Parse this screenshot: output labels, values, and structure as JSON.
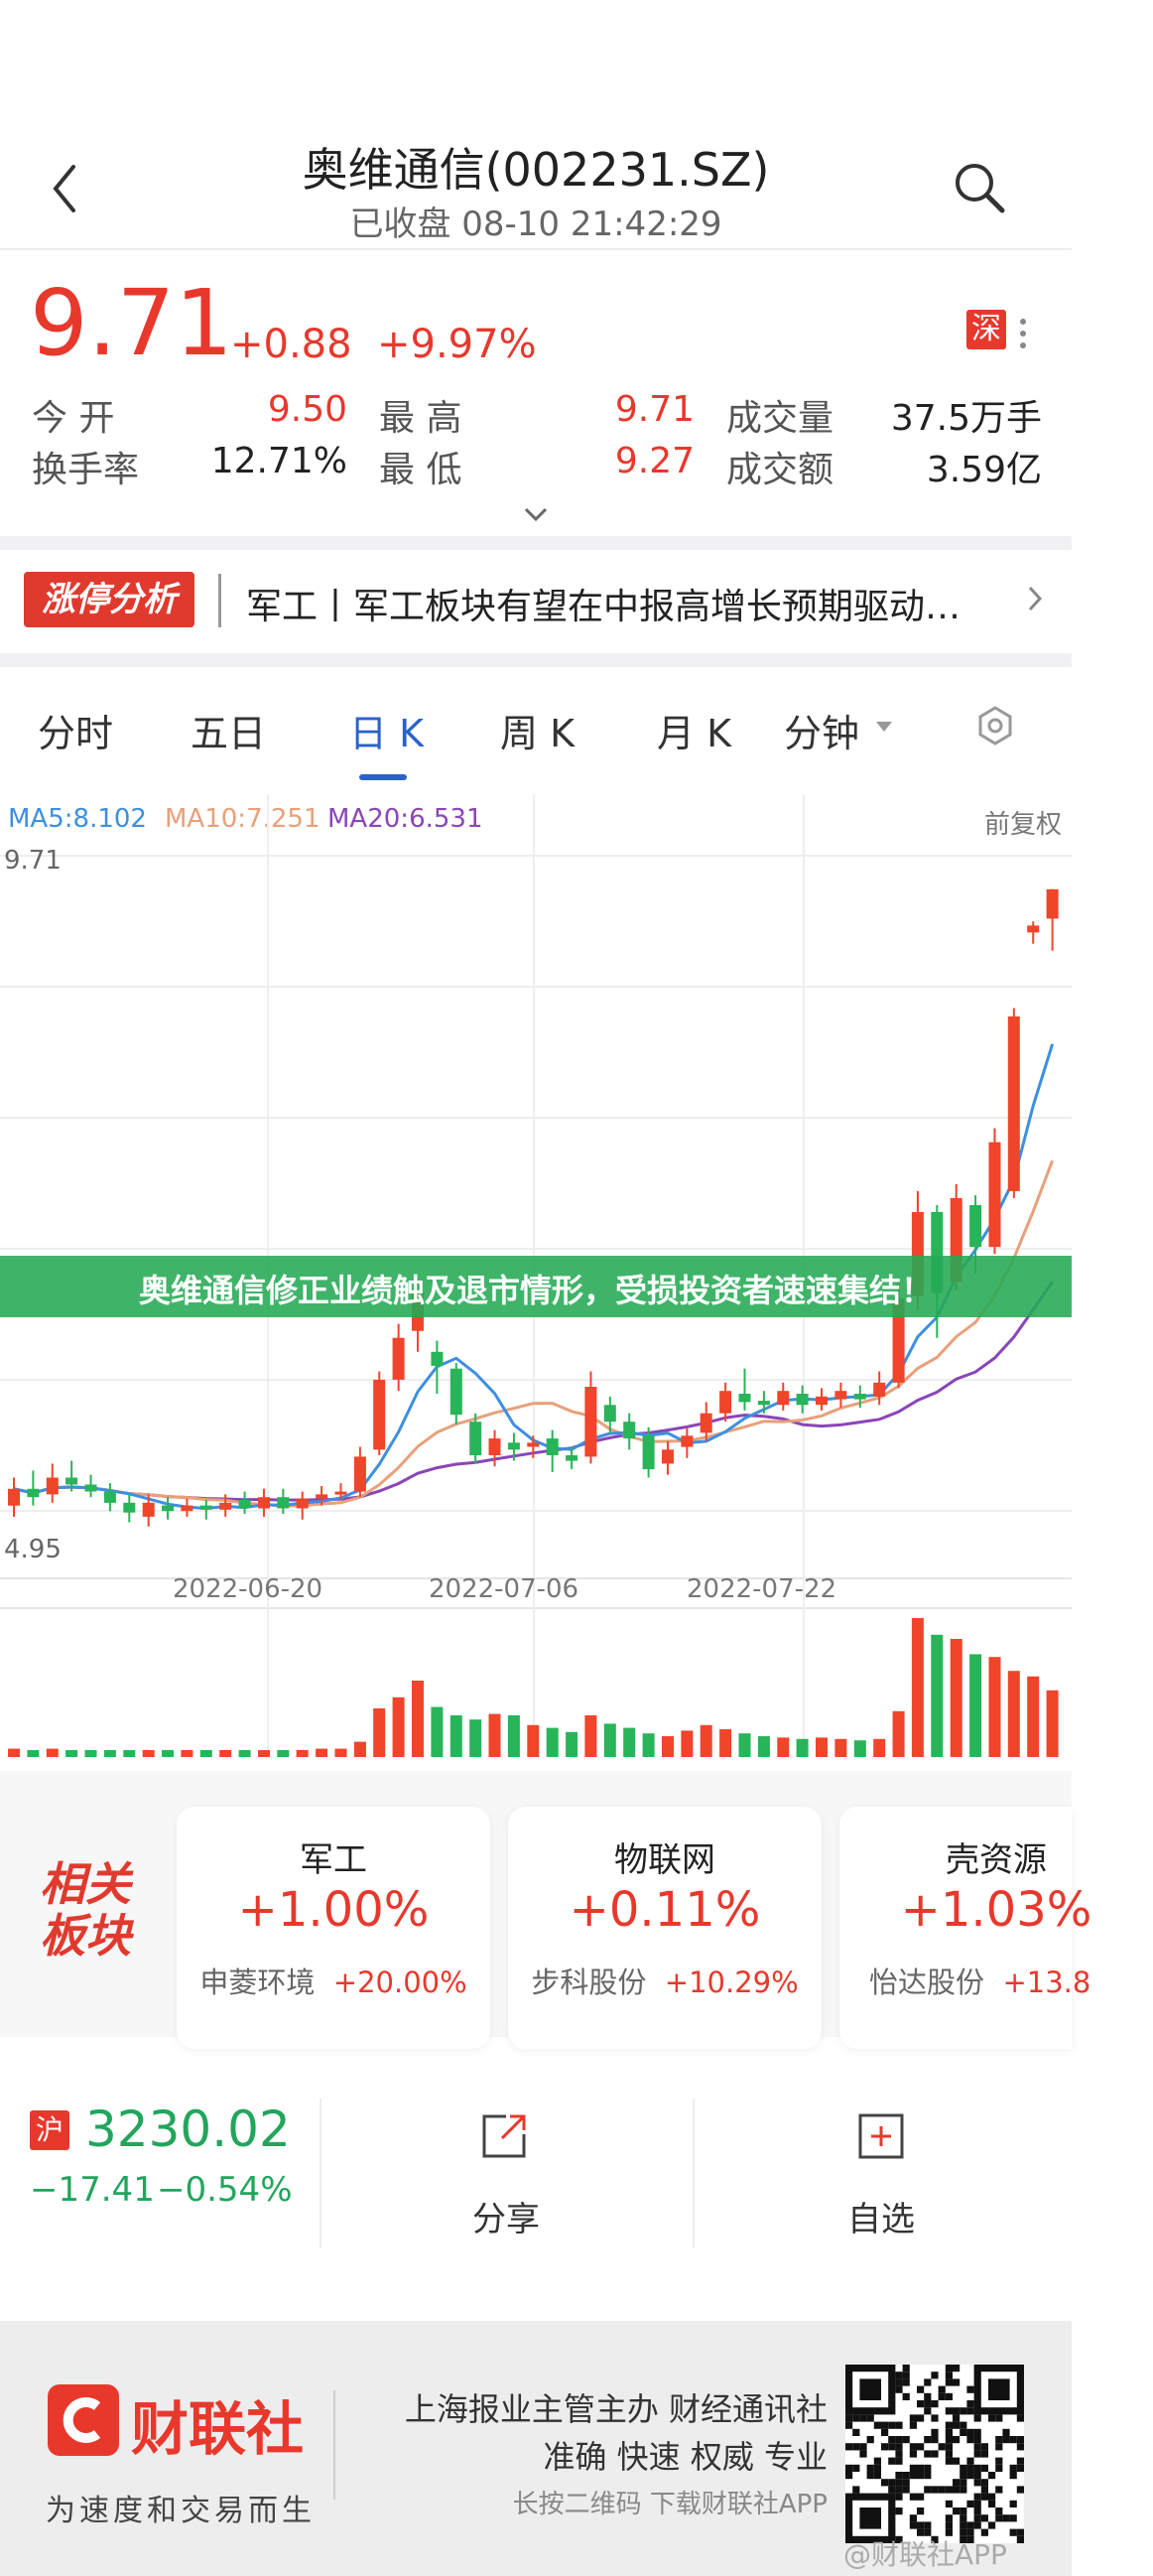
{
  "header": {
    "title": "奥维通信(002231.SZ)",
    "subtitle": "已收盘 08-10 21:42:29"
  },
  "quote": {
    "price": "9.71",
    "change": "+0.88",
    "change_pct": "+9.97%",
    "exchange_badge": "深",
    "open_label": "今 开",
    "open": "9.50",
    "high_label": "最 高",
    "high": "9.71",
    "volume_label": "成交量",
    "volume": "37.5万手",
    "turnover_label": "换手率",
    "turnover": "12.71%",
    "low_label": "最 低",
    "low": "9.27",
    "amount_label": "成交额",
    "amount": "3.59亿"
  },
  "news": {
    "badge": "涨停分析",
    "text": "军工丨军工板块有望在中报高增长预期驱动…"
  },
  "tabs": [
    "分时",
    "五日",
    "日 K",
    "周 K",
    "月 K",
    "分钟"
  ],
  "active_tab": "日 K",
  "ma_legend": {
    "ma5": "MA5:8.102",
    "ma10": "MA10:7.251",
    "ma20": "MA20:6.531",
    "adjust": "前复权"
  },
  "chart_data": {
    "type": "candlestick",
    "ymax_label": "9.71",
    "ymin_label": "4.95",
    "x_ticks": [
      "2022-06-20",
      "2022-07-06",
      "2022-07-22"
    ],
    "series_colors": {
      "up": "#f0442b",
      "down": "#28b459",
      "ma5": "#3d8fe0",
      "ma10": "#e8a07a",
      "ma20": "#8a45b8"
    },
    "candles": [
      {
        "o": 5.3,
        "c": 5.42,
        "h": 5.5,
        "l": 5.22
      },
      {
        "o": 5.42,
        "c": 5.36,
        "h": 5.55,
        "l": 5.3
      },
      {
        "o": 5.38,
        "c": 5.5,
        "h": 5.6,
        "l": 5.32
      },
      {
        "o": 5.5,
        "c": 5.45,
        "h": 5.62,
        "l": 5.4
      },
      {
        "o": 5.45,
        "c": 5.4,
        "h": 5.52,
        "l": 5.36
      },
      {
        "o": 5.4,
        "c": 5.32,
        "h": 5.46,
        "l": 5.26
      },
      {
        "o": 5.32,
        "c": 5.25,
        "h": 5.38,
        "l": 5.18
      },
      {
        "o": 5.22,
        "c": 5.32,
        "h": 5.38,
        "l": 5.15
      },
      {
        "o": 5.3,
        "c": 5.26,
        "h": 5.36,
        "l": 5.2
      },
      {
        "o": 5.26,
        "c": 5.3,
        "h": 5.35,
        "l": 5.22
      },
      {
        "o": 5.3,
        "c": 5.27,
        "h": 5.34,
        "l": 5.2
      },
      {
        "o": 5.27,
        "c": 5.32,
        "h": 5.38,
        "l": 5.22
      },
      {
        "o": 5.34,
        "c": 5.28,
        "h": 5.4,
        "l": 5.24
      },
      {
        "o": 5.28,
        "c": 5.36,
        "h": 5.42,
        "l": 5.22
      },
      {
        "o": 5.36,
        "c": 5.28,
        "h": 5.42,
        "l": 5.24
      },
      {
        "o": 5.28,
        "c": 5.35,
        "h": 5.4,
        "l": 5.2
      },
      {
        "o": 5.35,
        "c": 5.38,
        "h": 5.44,
        "l": 5.3
      },
      {
        "o": 5.38,
        "c": 5.4,
        "h": 5.46,
        "l": 5.34
      },
      {
        "o": 5.4,
        "c": 5.65,
        "h": 5.72,
        "l": 5.36
      },
      {
        "o": 5.7,
        "c": 6.2,
        "h": 6.26,
        "l": 5.66
      },
      {
        "o": 6.2,
        "c": 6.5,
        "h": 6.6,
        "l": 6.12
      },
      {
        "o": 6.55,
        "c": 6.82,
        "h": 6.9,
        "l": 6.4
      },
      {
        "o": 6.4,
        "c": 6.3,
        "h": 6.48,
        "l": 6.1
      },
      {
        "o": 6.28,
        "c": 5.95,
        "h": 6.32,
        "l": 5.88
      },
      {
        "o": 5.9,
        "c": 5.66,
        "h": 5.96,
        "l": 5.6
      },
      {
        "o": 5.66,
        "c": 5.78,
        "h": 5.84,
        "l": 5.58
      },
      {
        "o": 5.75,
        "c": 5.7,
        "h": 5.82,
        "l": 5.62
      },
      {
        "o": 5.72,
        "c": 5.75,
        "h": 5.8,
        "l": 5.64
      },
      {
        "o": 5.78,
        "c": 5.66,
        "h": 5.84,
        "l": 5.54
      },
      {
        "o": 5.66,
        "c": 5.62,
        "h": 5.72,
        "l": 5.56
      },
      {
        "o": 5.65,
        "c": 6.15,
        "h": 6.26,
        "l": 5.6
      },
      {
        "o": 6.02,
        "c": 5.9,
        "h": 6.08,
        "l": 5.82
      },
      {
        "o": 5.9,
        "c": 5.78,
        "h": 5.96,
        "l": 5.7
      },
      {
        "o": 5.8,
        "c": 5.56,
        "h": 5.86,
        "l": 5.5
      },
      {
        "o": 5.6,
        "c": 5.7,
        "h": 5.76,
        "l": 5.52
      },
      {
        "o": 5.72,
        "c": 5.8,
        "h": 5.86,
        "l": 5.64
      },
      {
        "o": 5.82,
        "c": 5.96,
        "h": 6.04,
        "l": 5.76
      },
      {
        "o": 5.96,
        "c": 6.12,
        "h": 6.18,
        "l": 5.9
      },
      {
        "o": 6.1,
        "c": 6.04,
        "h": 6.28,
        "l": 5.98
      },
      {
        "o": 6.05,
        "c": 6.02,
        "h": 6.12,
        "l": 5.96
      },
      {
        "o": 6.02,
        "c": 6.12,
        "h": 6.18,
        "l": 5.98
      },
      {
        "o": 6.1,
        "c": 6.02,
        "h": 6.16,
        "l": 5.96
      },
      {
        "o": 6.02,
        "c": 6.08,
        "h": 6.14,
        "l": 5.98
      },
      {
        "o": 6.06,
        "c": 6.12,
        "h": 6.18,
        "l": 6.0
      },
      {
        "o": 6.1,
        "c": 6.06,
        "h": 6.16,
        "l": 6.0
      },
      {
        "o": 6.08,
        "c": 6.18,
        "h": 6.26,
        "l": 6.02
      },
      {
        "o": 6.18,
        "c": 6.78,
        "h": 6.9,
        "l": 6.14
      },
      {
        "o": 6.8,
        "c": 7.4,
        "h": 7.55,
        "l": 6.7
      },
      {
        "o": 7.4,
        "c": 6.82,
        "h": 7.45,
        "l": 6.5
      },
      {
        "o": 6.9,
        "c": 7.5,
        "h": 7.6,
        "l": 6.84
      },
      {
        "o": 7.45,
        "c": 7.15,
        "h": 7.52,
        "l": 6.96
      },
      {
        "o": 7.15,
        "c": 7.9,
        "h": 8.0,
        "l": 7.1
      },
      {
        "o": 7.55,
        "c": 8.8,
        "h": 8.86,
        "l": 7.5
      },
      {
        "o": 9.4,
        "c": 9.45,
        "h": 9.48,
        "l": 9.32
      },
      {
        "o": 9.5,
        "c": 9.71,
        "h": 9.71,
        "l": 9.27
      }
    ],
    "volumes": [
      0.06,
      0.05,
      0.06,
      0.05,
      0.05,
      0.05,
      0.05,
      0.05,
      0.05,
      0.05,
      0.05,
      0.05,
      0.05,
      0.05,
      0.05,
      0.05,
      0.06,
      0.06,
      0.11,
      0.35,
      0.43,
      0.55,
      0.36,
      0.3,
      0.27,
      0.31,
      0.3,
      0.23,
      0.21,
      0.18,
      0.3,
      0.24,
      0.21,
      0.17,
      0.15,
      0.19,
      0.23,
      0.2,
      0.17,
      0.15,
      0.14,
      0.13,
      0.14,
      0.13,
      0.12,
      0.13,
      0.33,
      1.0,
      0.88,
      0.85,
      0.74,
      0.72,
      0.62,
      0.58,
      0.48
    ]
  },
  "sectors_label": "相关板块",
  "sectors": [
    {
      "name": "军工",
      "pct": "+1.00%",
      "stock": "申菱环境",
      "stock_pct": "+20.00%"
    },
    {
      "name": "物联网",
      "pct": "+0.11%",
      "stock": "步科股份",
      "stock_pct": "+10.29%"
    },
    {
      "name": "壳资源",
      "pct": "+1.03%",
      "stock": "怡达股份",
      "stock_pct": "+13.8"
    }
  ],
  "banner": "奥维通信修正业绩触及退市情形，受损投资者速速集结！",
  "index": {
    "badge": "沪",
    "value": "3230.02",
    "change": "−17.41",
    "change_pct": "−0.54%"
  },
  "actions": {
    "share": "分享",
    "watch": "自选"
  },
  "footer": {
    "logo": "财联社",
    "slogan": "为速度和交易而生",
    "line1": "上海报业主管主办 财经通讯社",
    "line2": "准确 快速 权威 专业",
    "line3": "长按二维码 下载财联社APP",
    "watermark": "@财联社APP"
  }
}
